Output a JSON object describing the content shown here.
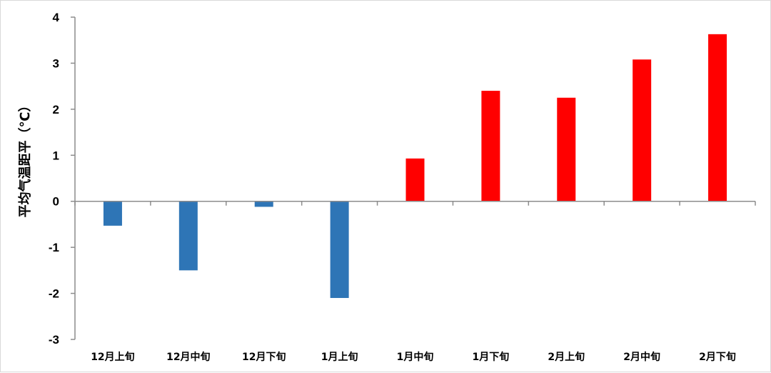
{
  "chart_data": {
    "type": "bar",
    "categories": [
      "12月上旬",
      "12月中旬",
      "12月下旬",
      "1月上旬",
      "1月中旬",
      "1月下旬",
      "2月上旬",
      "2月中旬",
      "2月下旬"
    ],
    "values": [
      -0.53,
      -1.5,
      -0.12,
      -2.1,
      0.93,
      2.4,
      2.25,
      3.08,
      3.63
    ],
    "title": "",
    "xlabel": "",
    "ylabel": "平均气温距平（℃）",
    "ylim": [
      -3,
      4
    ],
    "yticks": [
      4,
      3,
      2,
      1,
      0,
      -1,
      -2,
      -3
    ],
    "grid": false,
    "legend": "none",
    "colors": {
      "negative": "#2e75b6",
      "positive": "#ff0000",
      "axis": "#8c8c8c"
    }
  }
}
